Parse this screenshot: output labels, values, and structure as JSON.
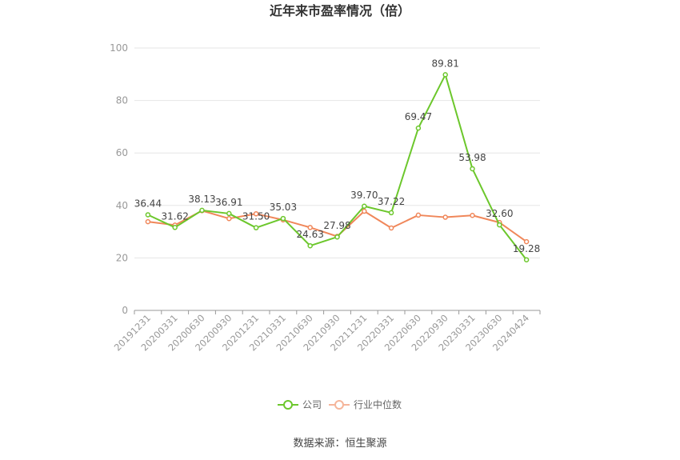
{
  "chart_data": {
    "type": "line",
    "title": "近年来市盈率情况（倍）",
    "categories": [
      "20191231",
      "20200331",
      "20200630",
      "20200930",
      "20201231",
      "20210331",
      "20210630",
      "20210930",
      "20211231",
      "20220331",
      "20220630",
      "20220930",
      "20230331",
      "20230630",
      "20240424"
    ],
    "series": [
      {
        "name": "公司",
        "color": "#6cc72c",
        "values": [
          36.44,
          31.62,
          38.13,
          36.91,
          31.5,
          35.03,
          24.63,
          27.98,
          39.7,
          37.22,
          69.47,
          89.81,
          53.98,
          32.6,
          19.28
        ],
        "labels": [
          "36.44",
          "31.62",
          "38.13",
          "36.91",
          "31.50",
          "35.03",
          "24.63",
          "27.98",
          "39.70",
          "37.22",
          "69.47",
          "89.81",
          "53.98",
          "32.60",
          "19.28"
        ]
      },
      {
        "name": "行业中位数",
        "color": "#f0875a",
        "values": [
          33.8,
          32.5,
          38.0,
          35.0,
          36.8,
          34.5,
          31.6,
          28.2,
          37.8,
          31.4,
          36.3,
          35.5,
          36.2,
          33.5,
          26.2
        ]
      }
    ],
    "ylim": [
      0,
      100
    ],
    "yticks": [
      "0",
      "20",
      "40",
      "60",
      "80",
      "100"
    ],
    "grid": true,
    "legend_position": "bottom"
  },
  "source_text": "数据来源：恒生聚源"
}
